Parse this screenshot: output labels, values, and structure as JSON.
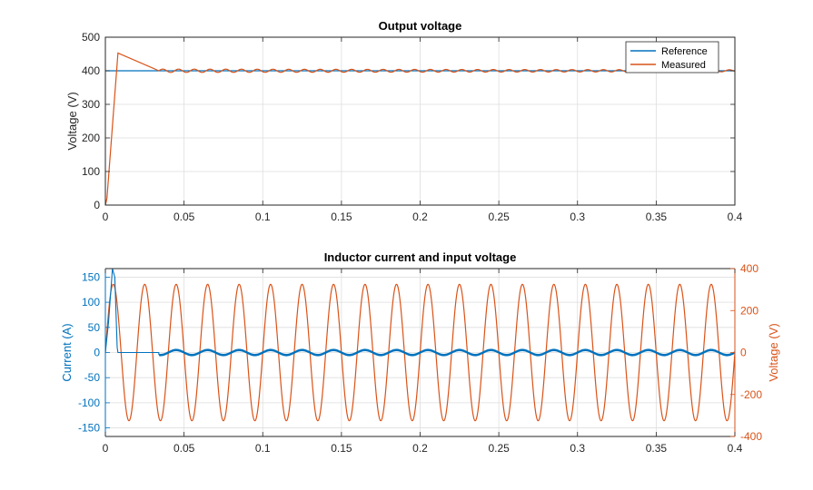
{
  "colors": {
    "blue": "#0072BD",
    "orange": "#D95319",
    "grid": "#dedede",
    "axis": "#262626"
  },
  "chart_data": [
    {
      "type": "line",
      "title": "Output voltage",
      "xlabel": "",
      "ylabel": "Voltage (V)",
      "xlim": [
        0,
        0.4
      ],
      "ylim": [
        0,
        500
      ],
      "xticks": [
        0,
        0.05,
        0.1,
        0.15,
        0.2,
        0.25,
        0.3,
        0.35,
        0.4
      ],
      "xtick_labels": [
        "0",
        "0.05",
        "0.1",
        "0.15",
        "0.2",
        "0.25",
        "0.3",
        "0.35",
        "0.4"
      ],
      "yticks": [
        0,
        100,
        200,
        300,
        400,
        500
      ],
      "ytick_labels": [
        "0",
        "100",
        "200",
        "300",
        "400",
        "500"
      ],
      "grid": true,
      "legend": {
        "position": "top-right",
        "entries": [
          "Reference",
          "Measured"
        ]
      },
      "series": [
        {
          "name": "Reference",
          "color": "#0072BD",
          "x": [
            0,
            0.4
          ],
          "y": [
            400,
            400
          ]
        },
        {
          "name": "Measured",
          "color": "#D95319",
          "profile": {
            "breakpoints": {
              "t": [
                0,
                0.001,
                0.008,
                0.034,
                0.4
              ],
              "v": [
                0,
                20,
                453,
                400,
                400
              ]
            },
            "ripple": {
              "start": 0.034,
              "amplitude_start": 5,
              "amplitude_end": 3,
              "frequency_hz": 100
            }
          }
        }
      ]
    },
    {
      "type": "line",
      "title": "Inductor current and input voltage",
      "xlabel": "",
      "ylabel_left": "Current (A)",
      "ylabel_right": "Voltage (V)",
      "xlim": [
        0,
        0.4
      ],
      "ylim_left": [
        -167,
        167
      ],
      "ylim_right": [
        -400,
        400
      ],
      "xticks": [
        0,
        0.05,
        0.1,
        0.15,
        0.2,
        0.25,
        0.3,
        0.35,
        0.4
      ],
      "xtick_labels": [
        "0",
        "0.05",
        "0.1",
        "0.15",
        "0.2",
        "0.25",
        "0.3",
        "0.35",
        "0.4"
      ],
      "yticks_left": [
        -150,
        -100,
        -50,
        0,
        50,
        100,
        150
      ],
      "ytick_labels_left": [
        "-150",
        "-100",
        "-50",
        "0",
        "50",
        "100",
        "150"
      ],
      "yticks_right": [
        -400,
        -200,
        0,
        200,
        400
      ],
      "ytick_labels_right": [
        "-400",
        "-200",
        "0",
        "200",
        "400"
      ],
      "grid": true,
      "series": [
        {
          "name": "Current",
          "axis": "left",
          "color": "#0072BD",
          "profile": {
            "startup": {
              "t": [
                0,
                0.002,
                0.0045,
                0.006,
                0.0075,
                0.008,
                0.034
              ],
              "v": [
                0,
                60,
                167,
                150,
                10,
                0,
                0
              ]
            },
            "oscillation": {
              "start": 0.034,
              "amplitude": 5,
              "frequency_hz": 50,
              "ripple": 1.5
            }
          }
        },
        {
          "name": "Input voltage",
          "axis": "right",
          "color": "#D95319",
          "profile": {
            "amplitude": 325,
            "frequency_hz": 50,
            "phase": 0
          }
        }
      ]
    }
  ]
}
